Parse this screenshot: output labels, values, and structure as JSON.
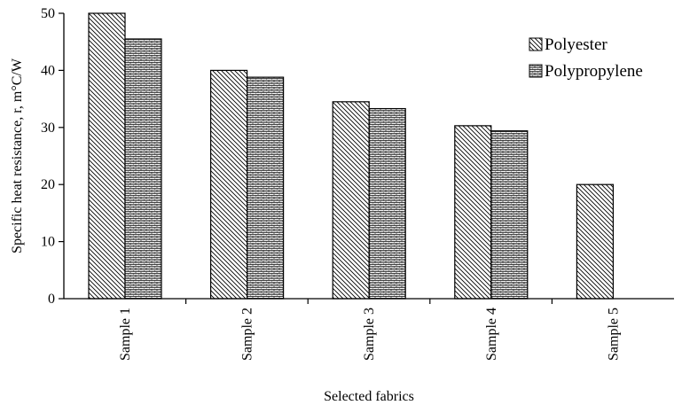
{
  "chart_data": {
    "type": "bar",
    "title": "",
    "xlabel": "Selected fabrics",
    "ylabel": "Specific heat resistance, r, m°C/W",
    "ylim": [
      0,
      50
    ],
    "yticks": [
      0,
      10,
      20,
      30,
      40,
      50
    ],
    "categories": [
      "Sample 1",
      "Sample 2",
      "Sample 3",
      "Sample 4",
      "Sample 5"
    ],
    "series": [
      {
        "name": "Polyester",
        "pattern": "diagonal-hatch",
        "values": [
          50,
          40,
          34.5,
          30.3,
          20
        ]
      },
      {
        "name": "Polypropylene",
        "pattern": "brick-hatch",
        "values": [
          45.5,
          38.8,
          33.3,
          29.4,
          null
        ]
      }
    ],
    "grid": false,
    "legend": "top-right",
    "colors": {
      "stroke": "#000000",
      "background": "#ffffff"
    }
  }
}
